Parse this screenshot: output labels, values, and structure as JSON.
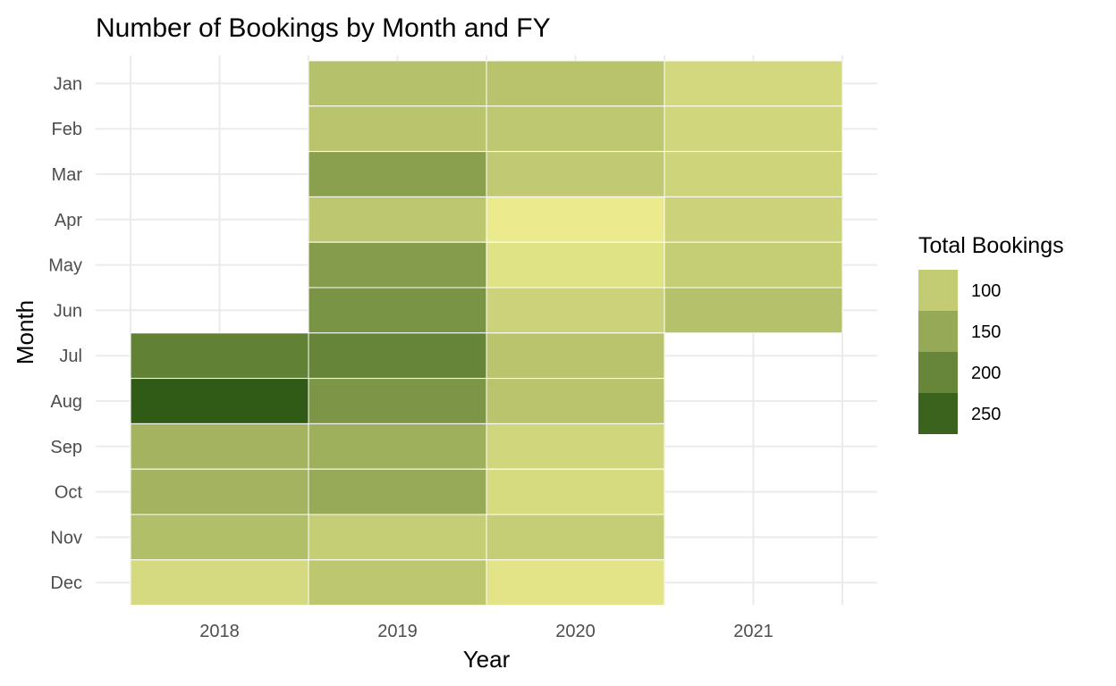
{
  "chart_data": {
    "type": "heatmap",
    "title": "Number of Bookings by Month and FY",
    "xlabel": "Year",
    "ylabel": "Month",
    "x_categories": [
      "2018",
      "2019",
      "2020",
      "2021"
    ],
    "y_categories": [
      "Jan",
      "Feb",
      "Mar",
      "Apr",
      "May",
      "Jun",
      "Jul",
      "Aug",
      "Sep",
      "Oct",
      "Nov",
      "Dec"
    ],
    "cells": [
      {
        "x": "2019",
        "y": "Jan",
        "value": 115
      },
      {
        "x": "2020",
        "y": "Jan",
        "value": 112
      },
      {
        "x": "2021",
        "y": "Jan",
        "value": 82
      },
      {
        "x": "2019",
        "y": "Feb",
        "value": 110
      },
      {
        "x": "2020",
        "y": "Feb",
        "value": 105
      },
      {
        "x": "2021",
        "y": "Feb",
        "value": 85
      },
      {
        "x": "2019",
        "y": "Mar",
        "value": 162
      },
      {
        "x": "2020",
        "y": "Mar",
        "value": 102
      },
      {
        "x": "2021",
        "y": "Mar",
        "value": 88
      },
      {
        "x": "2019",
        "y": "Apr",
        "value": 106
      },
      {
        "x": "2020",
        "y": "Apr",
        "value": 55
      },
      {
        "x": "2021",
        "y": "Apr",
        "value": 90
      },
      {
        "x": "2019",
        "y": "May",
        "value": 168
      },
      {
        "x": "2020",
        "y": "May",
        "value": 68
      },
      {
        "x": "2021",
        "y": "May",
        "value": 96
      },
      {
        "x": "2019",
        "y": "Jun",
        "value": 180
      },
      {
        "x": "2020",
        "y": "Jun",
        "value": 90
      },
      {
        "x": "2021",
        "y": "Jun",
        "value": 115
      },
      {
        "x": "2018",
        "y": "Jul",
        "value": 208
      },
      {
        "x": "2019",
        "y": "Jul",
        "value": 202
      },
      {
        "x": "2020",
        "y": "Jul",
        "value": 110
      },
      {
        "x": "2018",
        "y": "Aug",
        "value": 262
      },
      {
        "x": "2019",
        "y": "Aug",
        "value": 178
      },
      {
        "x": "2020",
        "y": "Aug",
        "value": 110
      },
      {
        "x": "2018",
        "y": "Sep",
        "value": 135
      },
      {
        "x": "2019",
        "y": "Sep",
        "value": 140
      },
      {
        "x": "2020",
        "y": "Sep",
        "value": 85
      },
      {
        "x": "2018",
        "y": "Oct",
        "value": 135
      },
      {
        "x": "2019",
        "y": "Oct",
        "value": 148
      },
      {
        "x": "2020",
        "y": "Oct",
        "value": 78
      },
      {
        "x": "2018",
        "y": "Nov",
        "value": 118
      },
      {
        "x": "2019",
        "y": "Nov",
        "value": 96
      },
      {
        "x": "2020",
        "y": "Nov",
        "value": 96
      },
      {
        "x": "2018",
        "y": "Dec",
        "value": 80
      },
      {
        "x": "2019",
        "y": "Dec",
        "value": 106
      },
      {
        "x": "2020",
        "y": "Dec",
        "value": 65
      }
    ],
    "legend": {
      "title": "Total Bookings",
      "placement": "right",
      "breaks": [
        100,
        150,
        200,
        250
      ],
      "labels": [
        "100",
        "150",
        "200",
        "250"
      ]
    },
    "color_scale": {
      "low_value": 50,
      "high_value": 265,
      "low_color": "#f0ee90",
      "high_color": "#2d5914"
    },
    "grid": true
  }
}
